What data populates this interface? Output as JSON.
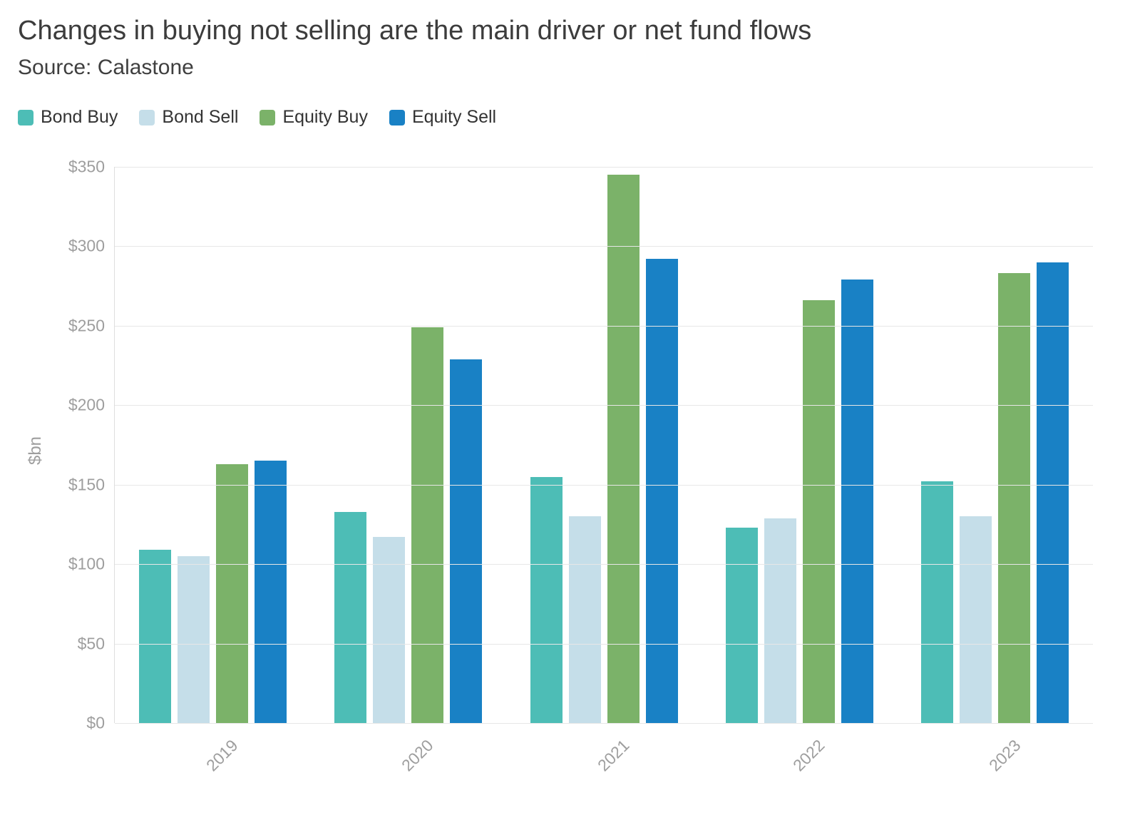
{
  "header": {
    "title": "Changes in buying not selling are the main driver or net fund flows",
    "subtitle": "Source: Calastone"
  },
  "chart_data": {
    "type": "bar",
    "title": "Changes in buying not selling are the main driver or net fund flows",
    "source": "Source: Calastone",
    "xlabel": "",
    "ylabel": "$bn",
    "ylim": [
      0,
      350
    ],
    "grid": "horizontal",
    "legend_position": "top-left",
    "yticks": [
      {
        "value": 0,
        "label": "$0"
      },
      {
        "value": 50,
        "label": "$50"
      },
      {
        "value": 100,
        "label": "$100"
      },
      {
        "value": 150,
        "label": "$150"
      },
      {
        "value": 200,
        "label": "$200"
      },
      {
        "value": 250,
        "label": "$250"
      },
      {
        "value": 300,
        "label": "$300"
      },
      {
        "value": 350,
        "label": "$350"
      }
    ],
    "categories": [
      "2019",
      "2020",
      "2021",
      "2022",
      "2023"
    ],
    "series": [
      {
        "name": "Bond Buy",
        "color": "#4dbdb6",
        "values": [
          109,
          133,
          155,
          123,
          152
        ]
      },
      {
        "name": "Bond Sell",
        "color": "#c5dee9",
        "values": [
          105,
          117,
          130,
          129,
          130
        ]
      },
      {
        "name": "Equity Buy",
        "color": "#7bb269",
        "values": [
          163,
          249,
          345,
          266,
          283
        ]
      },
      {
        "name": "Equity Sell",
        "color": "#1981c5",
        "values": [
          165,
          229,
          292,
          279,
          290
        ]
      }
    ]
  }
}
